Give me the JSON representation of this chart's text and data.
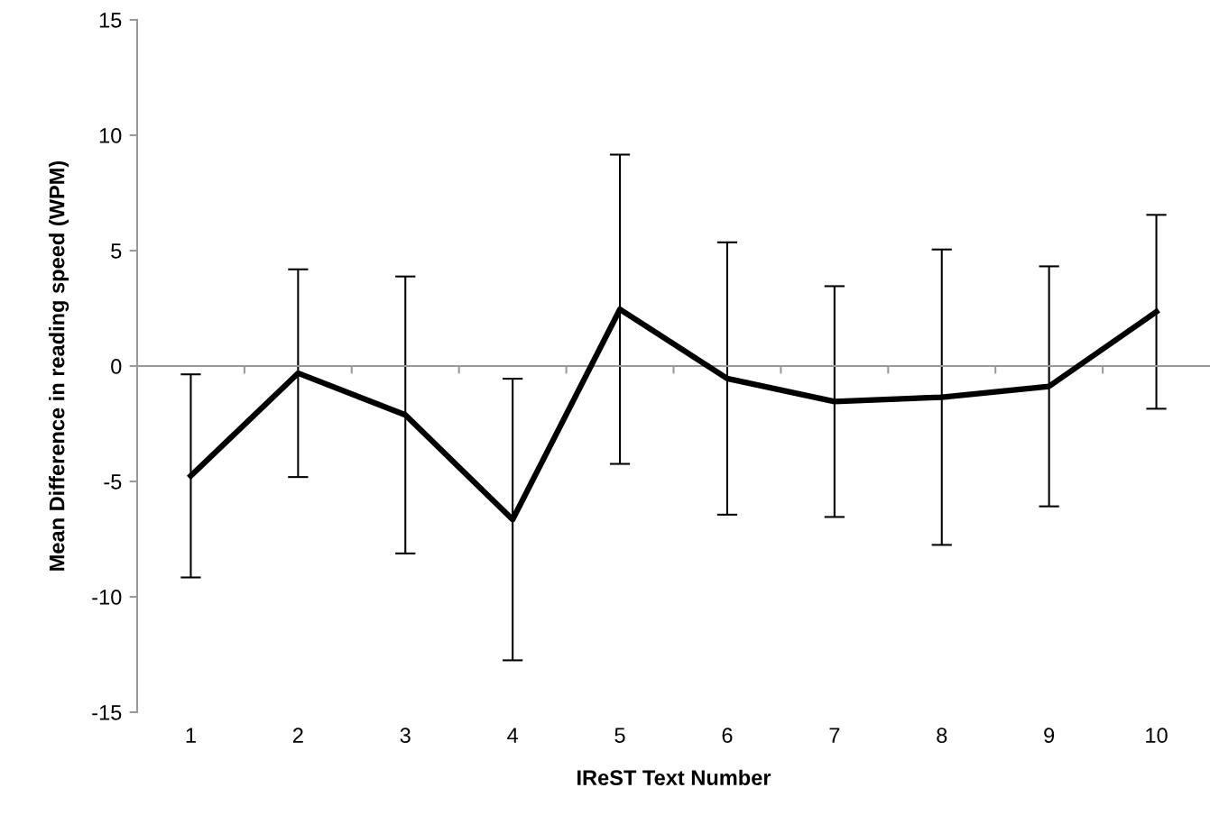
{
  "chart_data": {
    "type": "line",
    "xlabel": "IReST Text Number",
    "ylabel": "Mean Difference in reading speed (WPM)",
    "categories": [
      "1",
      "2",
      "3",
      "4",
      "5",
      "6",
      "7",
      "8",
      "9",
      "10"
    ],
    "series": [
      {
        "color": "#000000",
        "values": [
          -4.76,
          -0.31,
          -2.12,
          -6.65,
          2.46,
          -0.54,
          -1.54,
          -1.35,
          -0.88,
          2.35
        ],
        "errors": [
          4.4,
          4.5,
          6.0,
          6.1,
          6.7,
          5.9,
          5.0,
          6.4,
          5.2,
          4.2
        ]
      }
    ],
    "ylim": [
      -15,
      15
    ],
    "yticks": [
      -15,
      -10,
      -5,
      0,
      5,
      10,
      15
    ],
    "marker": "none",
    "line_style": "solid"
  }
}
